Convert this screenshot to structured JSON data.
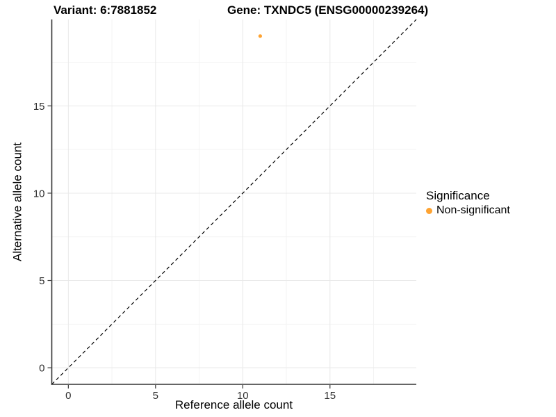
{
  "header": {
    "variant_title": "Variant: 6:7881852",
    "gene_title": "Gene: TXNDC5 (ENSG00000239264)"
  },
  "legend": {
    "title": "Significance",
    "items": [
      {
        "label": "Non-significant",
        "color": "#FEA332"
      }
    ]
  },
  "colors": {
    "grid_major": "#E8E8E8",
    "grid_minor": "#F3F3F3",
    "axis_line": "#333333",
    "tick_mark": "#333333",
    "tick_label": "#303030",
    "reference_line": "#000000",
    "point": "#FEA332",
    "background": "#FFFFFF"
  },
  "chart_data": {
    "type": "scatter",
    "title": "Variant: 6:7881852 | Gene: TXNDC5 (ENSG00000239264)",
    "xlabel": "Reference allele count",
    "ylabel": "Alternative allele count",
    "xlim": [
      -0.95,
      19.95
    ],
    "ylim": [
      -0.95,
      19.95
    ],
    "x_ticks": [
      0,
      5,
      10,
      15
    ],
    "y_ticks": [
      0,
      5,
      10,
      15
    ],
    "x_minor_ticks": [
      2.5,
      7.5,
      12.5,
      17.5
    ],
    "y_minor_ticks": [
      2.5,
      7.5,
      12.5,
      17.5
    ],
    "grid": true,
    "legend_position": "right",
    "legend_title": "Significance",
    "series": [
      {
        "name": "Non-significant",
        "color": "#FEA332",
        "point_radius": 2.6,
        "points": [
          {
            "x": 11,
            "y": 19
          }
        ]
      }
    ],
    "reference_line": {
      "kind": "y=x",
      "style": "dashed",
      "color": "#000000"
    }
  }
}
